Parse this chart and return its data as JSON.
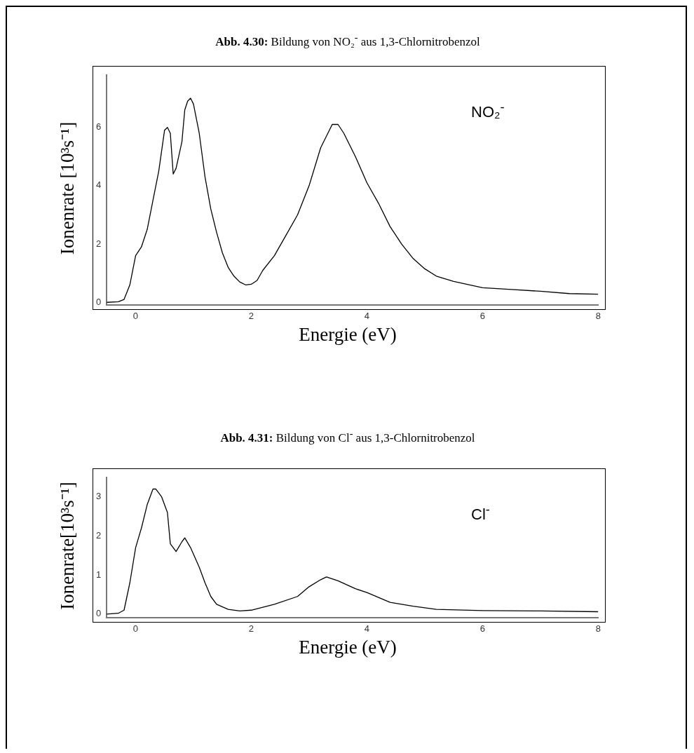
{
  "chart_data": [
    {
      "type": "line",
      "title": "Abb. 4.30: Bildung von NO₂$^{-}$ aus 1,3-Chlornitrobenzol",
      "xlabel": "Energie (eV)",
      "ylabel": "Ionenrate [10³s⁻¹]",
      "annotations": [
        "NO₂$^{-}$"
      ],
      "xlim": [
        -0.5,
        8
      ],
      "xticks": [
        0,
        2,
        4,
        6,
        8
      ],
      "ylim": [
        -0.1,
        7.8
      ],
      "yticks": [
        0,
        2,
        4,
        6
      ],
      "legend": false,
      "grid": false,
      "marker": "none",
      "series": [
        {
          "color": "#000000",
          "x": [
            -0.5,
            -0.3,
            -0.2,
            -0.1,
            0,
            0.1,
            0.2,
            0.3,
            0.4,
            0.5,
            0.55,
            0.6,
            0.65,
            0.7,
            0.8,
            0.85,
            0.9,
            0.95,
            1.0,
            1.1,
            1.2,
            1.3,
            1.4,
            1.5,
            1.6,
            1.7,
            1.8,
            1.9,
            2.0,
            2.1,
            2.2,
            2.4,
            2.6,
            2.8,
            3.0,
            3.2,
            3.4,
            3.5,
            3.6,
            3.8,
            4.0,
            4.2,
            4.4,
            4.6,
            4.8,
            5.0,
            5.2,
            5.5,
            6.0,
            6.5,
            7.0,
            7.5,
            8.0
          ],
          "values": [
            0,
            0.02,
            0.1,
            0.6,
            1.6,
            1.9,
            2.5,
            3.5,
            4.5,
            5.9,
            6.0,
            5.8,
            4.4,
            4.6,
            5.5,
            6.6,
            6.9,
            7.0,
            6.8,
            5.8,
            4.3,
            3.2,
            2.4,
            1.7,
            1.2,
            0.9,
            0.7,
            0.6,
            0.62,
            0.75,
            1.1,
            1.6,
            2.3,
            3.0,
            4.0,
            5.3,
            6.1,
            6.1,
            5.8,
            5.0,
            4.1,
            3.4,
            2.6,
            2.0,
            1.5,
            1.15,
            0.9,
            0.72,
            0.5,
            0.44,
            0.38,
            0.3,
            0.28
          ]
        }
      ]
    },
    {
      "type": "line",
      "title": "Abb. 4.31: Bildung von Cl$^{-}$ aus 1,3-Chlornitrobenzol",
      "xlabel": "Energie (eV)",
      "ylabel": "Ionenrate[10³s⁻¹]",
      "annotations": [
        "Cl$^{-}$"
      ],
      "xlim": [
        -0.5,
        8
      ],
      "xticks": [
        0,
        2,
        4,
        6,
        8
      ],
      "ylim": [
        -0.1,
        3.5
      ],
      "yticks": [
        0,
        1,
        2,
        3
      ],
      "legend": false,
      "grid": false,
      "marker": "none",
      "series": [
        {
          "color": "#000000",
          "x": [
            -0.5,
            -0.3,
            -0.2,
            -0.1,
            0,
            0.1,
            0.2,
            0.3,
            0.35,
            0.45,
            0.55,
            0.6,
            0.7,
            0.8,
            0.85,
            0.95,
            1.1,
            1.2,
            1.3,
            1.4,
            1.6,
            1.8,
            2.0,
            2.4,
            2.8,
            3.0,
            3.2,
            3.3,
            3.5,
            3.8,
            4.0,
            4.4,
            4.8,
            5.2,
            6,
            7,
            8
          ],
          "values": [
            0,
            0.02,
            0.1,
            0.8,
            1.7,
            2.2,
            2.8,
            3.2,
            3.2,
            3.0,
            2.6,
            1.8,
            1.6,
            1.85,
            1.95,
            1.7,
            1.2,
            0.8,
            0.45,
            0.25,
            0.12,
            0.08,
            0.1,
            0.25,
            0.45,
            0.7,
            0.88,
            0.95,
            0.85,
            0.65,
            0.55,
            0.3,
            0.2,
            0.12,
            0.09,
            0.08,
            0.06
          ]
        }
      ]
    }
  ]
}
